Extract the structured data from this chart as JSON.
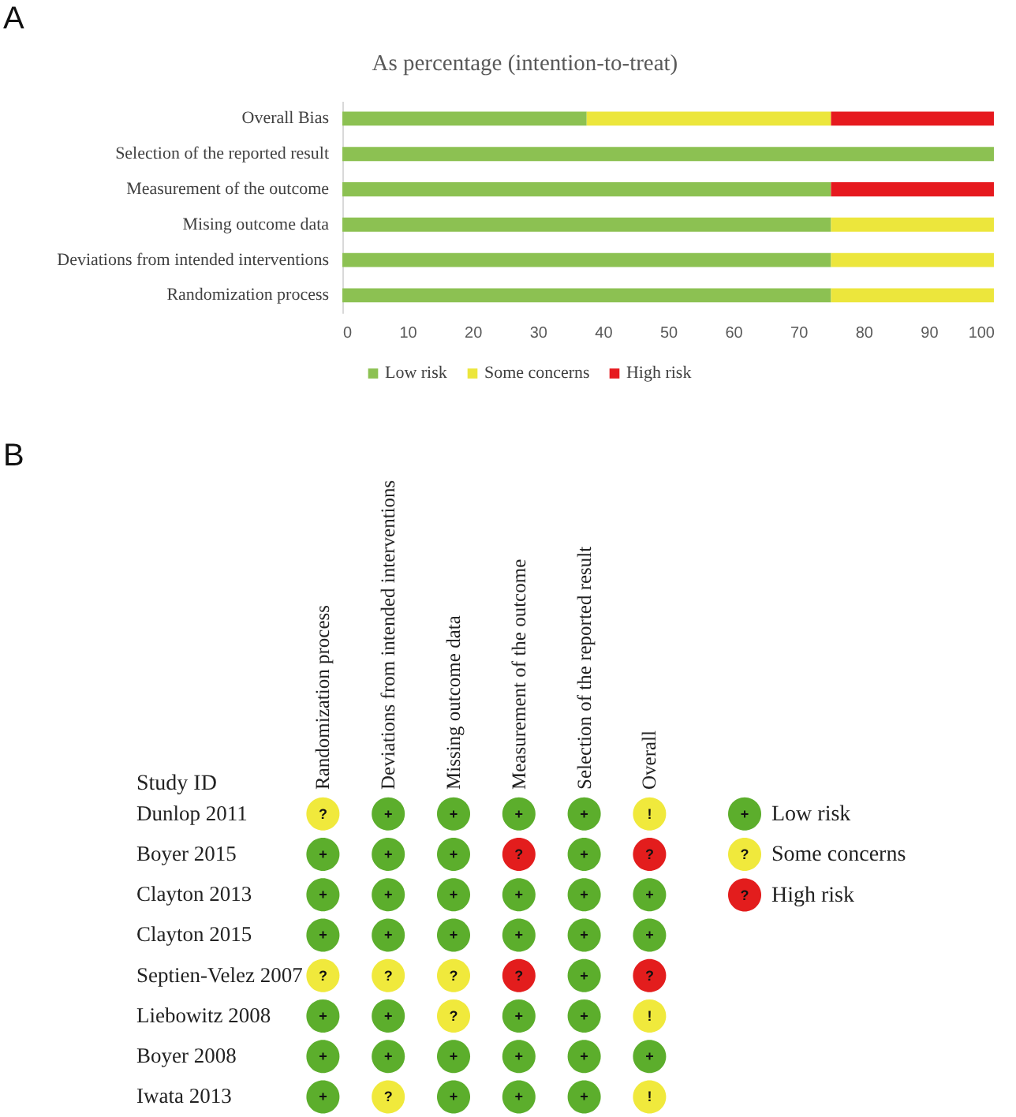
{
  "chart_data": [
    {
      "type": "bar",
      "orientation": "horizontal",
      "stacked": true,
      "title": "As percentage (intention-to-treat)",
      "categories": [
        "Overall Bias",
        "Selection of the reported result",
        "Measurement of the outcome",
        "Mising outcome data",
        "Deviations from intended interventions",
        "Randomization process"
      ],
      "series": [
        {
          "name": "Low risk",
          "color": "#8cc152",
          "values": [
            37.5,
            100,
            75,
            75,
            75,
            75
          ]
        },
        {
          "name": "Some concerns",
          "color": "#ece63c",
          "values": [
            37.5,
            0,
            0,
            25,
            25,
            25
          ]
        },
        {
          "name": "High risk",
          "color": "#e6191e",
          "values": [
            25,
            0,
            25,
            0,
            0,
            0
          ]
        }
      ],
      "xlim": [
        0,
        100
      ],
      "xticks": [
        0,
        10,
        20,
        30,
        40,
        50,
        60,
        70,
        80,
        90,
        100
      ],
      "legend": "bottom",
      "annotations": [
        "A"
      ]
    },
    {
      "type": "heatmap",
      "categories": [
        "Randomization process",
        "Deviations from intended interventions",
        "Missing outcome data",
        "Measurement of the outcome",
        "Selection of the reported result",
        "Overall"
      ],
      "y_categories": [
        "Dunlop 2011",
        "Boyer 2015",
        "Clayton 2013",
        "Clayton 2015",
        "Septien-Velez 2007",
        "Liebowitz 2008",
        "Boyer 2008",
        "Iwata 2013"
      ],
      "ylabel": "Study ID",
      "cells": [
        [
          "?",
          "+",
          "+",
          "+",
          "+",
          "!"
        ],
        [
          "+",
          "+",
          "+",
          "?",
          "+",
          "?"
        ],
        [
          "+",
          "+",
          "+",
          "+",
          "+",
          "+"
        ],
        [
          "+",
          "+",
          "+",
          "+",
          "+",
          "+"
        ],
        [
          "?",
          "?",
          "?",
          "?",
          "+",
          "?"
        ],
        [
          "+",
          "+",
          "?",
          "+",
          "+",
          "!"
        ],
        [
          "+",
          "+",
          "+",
          "+",
          "+",
          "+"
        ],
        [
          "+",
          "?",
          "+",
          "+",
          "+",
          "!"
        ]
      ],
      "colors": [
        "#f0e93c",
        "#5cae2c",
        "#5cae2c",
        "#5cae2c",
        "#5cae2c",
        "#f0e93c",
        "#5cae2c",
        "#5cae2c",
        "#5cae2c",
        "#e31d1d",
        "#5cae2c",
        "#e31d1d",
        "#5cae2c",
        "#5cae2c",
        "#5cae2c",
        "#5cae2c",
        "#5cae2c",
        "#5cae2c",
        "#5cae2c",
        "#5cae2c",
        "#5cae2c",
        "#5cae2c",
        "#5cae2c",
        "#5cae2c",
        "#f0e93c",
        "#f0e93c",
        "#f0e93c",
        "#e31d1d",
        "#5cae2c",
        "#e31d1d",
        "#5cae2c",
        "#5cae2c",
        "#f0e93c",
        "#5cae2c",
        "#5cae2c",
        "#f0e93c",
        "#5cae2c",
        "#5cae2c",
        "#5cae2c",
        "#5cae2c",
        "#5cae2c",
        "#5cae2c",
        "#5cae2c",
        "#f0e93c",
        "#5cae2c",
        "#5cae2c",
        "#5cae2c",
        "#f0e93c"
      ],
      "annotations": [
        "B"
      ]
    },
    {
      "type": "other",
      "categories": [
        "Low risk",
        "Some concerns",
        "High risk"
      ],
      "colors": [
        "#5cae2c",
        "#f0e93c",
        "#e31d1d"
      ],
      "value_labels": [
        "+",
        "?",
        "?"
      ]
    }
  ]
}
